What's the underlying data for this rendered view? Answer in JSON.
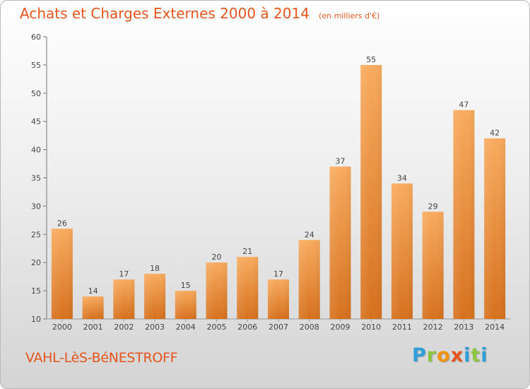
{
  "header": {
    "title": "Achats et Charges Externes 2000 à 2014",
    "unit": "(en milliers d'€)"
  },
  "footer": {
    "location": "VAHL-LèS-BéNESTROFF",
    "brand": "Proxiti"
  },
  "colors": {
    "accent": "#e4561d",
    "bar_light": "#f7a75a",
    "bar_dark": "#d8731f",
    "brand_letters": [
      "#2f9fd8",
      "#8cc63f",
      "#f39200",
      "#e4561d",
      "#2f9fd8",
      "#8cc63f"
    ]
  },
  "chart_data": {
    "type": "bar",
    "title": "Achats et Charges Externes 2000 à 2014",
    "subtitle": "(en milliers d'€)",
    "xlabel": "",
    "ylabel": "",
    "categories": [
      "2000",
      "2001",
      "2002",
      "2003",
      "2004",
      "2005",
      "2006",
      "2007",
      "2008",
      "2009",
      "2010",
      "2011",
      "2012",
      "2013",
      "2014"
    ],
    "values": [
      26,
      14,
      17,
      18,
      15,
      20,
      21,
      17,
      24,
      37,
      55,
      34,
      29,
      47,
      42
    ],
    "ylim": [
      10,
      60
    ],
    "yticks": [
      10,
      15,
      20,
      25,
      30,
      35,
      40,
      45,
      50,
      55,
      60
    ],
    "grid": false,
    "legend": "none",
    "data_labels": true
  }
}
